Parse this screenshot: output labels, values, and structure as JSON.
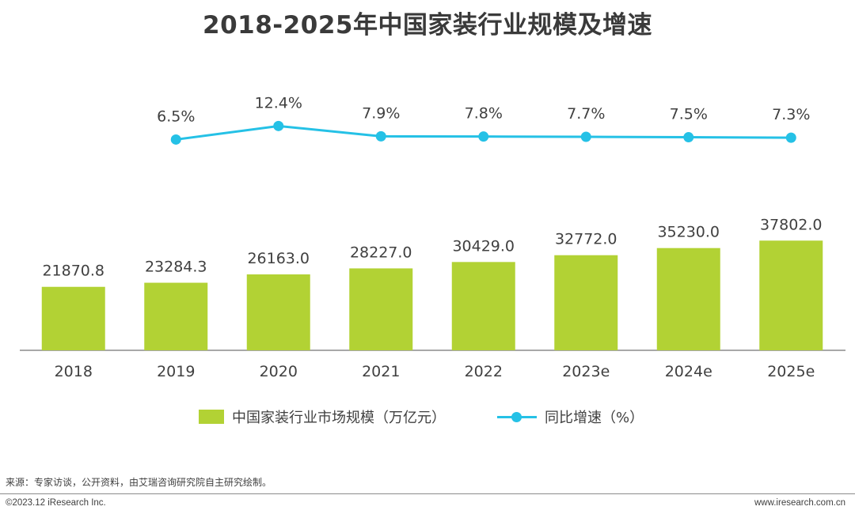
{
  "page": {
    "title": "2018-2025年中国家装行业规模及增速",
    "source": "来源：专家访谈，公开资料，由艾瑞咨询研究院自主研究绘制。",
    "copyright": "©2023.12 iResearch Inc.",
    "website": "www.iresearch.com.cn"
  },
  "colors": {
    "bar": "#b2d234",
    "line": "#25c1e6",
    "axis": "#8c8c8c",
    "text": "#404040"
  },
  "chart_data": {
    "type": "bar",
    "title": "2018-2025年中国家装行业规模及增速",
    "categories": [
      "2018",
      "2019",
      "2020",
      "2021",
      "2022",
      "2023e",
      "2024e",
      "2025e"
    ],
    "series": [
      {
        "name": "中国家装行业市场规模（万亿元）",
        "type": "bar",
        "values": [
          21870.8,
          23284.3,
          26163.0,
          28227.0,
          30429.0,
          32772.0,
          35230.0,
          37802.0
        ],
        "labels": [
          "21870.8",
          "23284.3",
          "26163.0",
          "28227.0",
          "30429.0",
          "32772.0",
          "35230.0",
          "37802.0"
        ]
      },
      {
        "name": "同比增速（%）",
        "type": "line",
        "values": [
          null,
          6.5,
          12.4,
          7.9,
          7.8,
          7.7,
          7.5,
          7.3
        ],
        "labels": [
          null,
          "6.5%",
          "12.4%",
          "7.9%",
          "7.8%",
          "7.7%",
          "7.5%",
          "7.3%"
        ]
      }
    ],
    "ylim": [
      0,
      40000
    ],
    "legend": "bottom",
    "grid": false
  }
}
